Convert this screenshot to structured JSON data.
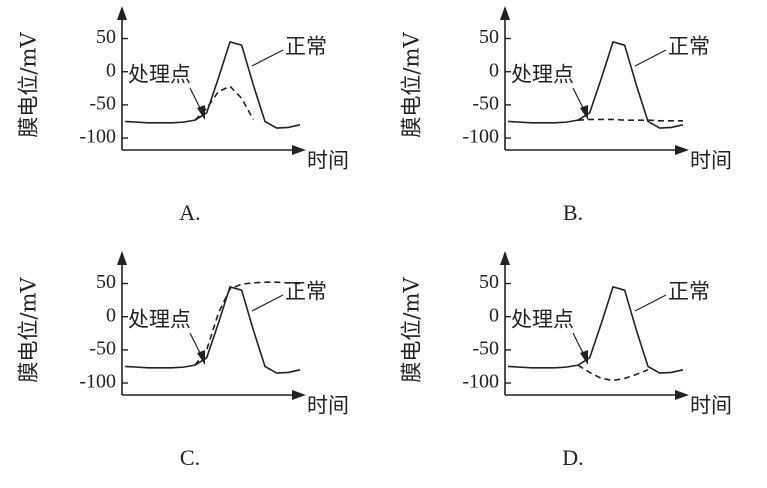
{
  "chart_data": [
    {
      "type": "line",
      "title": "A.",
      "ylabel": "膜电位/mV",
      "xlabel": "时间",
      "annotations": [
        "正常",
        "处理点"
      ],
      "categories": [
        null,
        null,
        null,
        null,
        null,
        null,
        null,
        null,
        null,
        null,
        null,
        null,
        null,
        null,
        null,
        null
      ],
      "ylim": [
        -118,
        90
      ],
      "yticks": [
        50,
        0,
        -50,
        -100
      ],
      "series": [
        {
          "color": "#222222",
          "style": "solid",
          "values": [
            -75,
            -76,
            -77,
            -77,
            -77,
            -76,
            -73,
            -62,
            -10,
            45,
            40,
            -20,
            -75,
            -85,
            -84,
            -80
          ]
        },
        {
          "color": "#222222",
          "style": "dashed",
          "values": [
            null,
            null,
            null,
            null,
            null,
            null,
            -73,
            -55,
            -30,
            -22,
            -40,
            -72,
            null,
            null,
            null,
            null
          ]
        }
      ]
    },
    {
      "type": "line",
      "title": "B.",
      "ylabel": "膜电位/mV",
      "xlabel": "时间",
      "annotations": [
        "正常",
        "处理点"
      ],
      "categories": [
        null,
        null,
        null,
        null,
        null,
        null,
        null,
        null,
        null,
        null,
        null,
        null,
        null,
        null,
        null,
        null
      ],
      "ylim": [
        -118,
        90
      ],
      "yticks": [
        50,
        0,
        -50,
        -100
      ],
      "series": [
        {
          "color": "#222222",
          "style": "solid",
          "values": [
            -75,
            -76,
            -77,
            -77,
            -77,
            -76,
            -73,
            -62,
            -10,
            45,
            40,
            -20,
            -75,
            -85,
            -84,
            -80
          ]
        },
        {
          "color": "#222222",
          "style": "dashed",
          "values": [
            null,
            null,
            null,
            null,
            null,
            null,
            -73,
            -72,
            -72,
            -72,
            -73,
            -73,
            -73,
            -74,
            -74,
            -74
          ]
        }
      ]
    },
    {
      "type": "line",
      "title": "C.",
      "ylabel": "膜电位/mV",
      "xlabel": "时间",
      "annotations": [
        "正常",
        "处理点"
      ],
      "categories": [
        null,
        null,
        null,
        null,
        null,
        null,
        null,
        null,
        null,
        null,
        null,
        null,
        null,
        null,
        null,
        null
      ],
      "ylim": [
        -118,
        90
      ],
      "yticks": [
        50,
        0,
        -50,
        -100
      ],
      "series": [
        {
          "color": "#222222",
          "style": "solid",
          "values": [
            -75,
            -76,
            -77,
            -77,
            -77,
            -76,
            -73,
            -62,
            -10,
            45,
            40,
            -20,
            -75,
            -85,
            -84,
            -80
          ]
        },
        {
          "color": "#222222",
          "style": "dashed",
          "values": [
            null,
            null,
            null,
            null,
            null,
            null,
            -73,
            -50,
            5,
            42,
            49,
            51,
            52,
            52,
            51,
            50
          ]
        }
      ]
    },
    {
      "type": "line",
      "title": "D.",
      "ylabel": "膜电位/mV",
      "xlabel": "时间",
      "annotations": [
        "正常",
        "处理点"
      ],
      "categories": [
        null,
        null,
        null,
        null,
        null,
        null,
        null,
        null,
        null,
        null,
        null,
        null,
        null,
        null,
        null,
        null
      ],
      "ylim": [
        -118,
        90
      ],
      "yticks": [
        50,
        0,
        -50,
        -100
      ],
      "series": [
        {
          "color": "#222222",
          "style": "solid",
          "values": [
            -75,
            -76,
            -77,
            -77,
            -77,
            -76,
            -73,
            -62,
            -10,
            45,
            40,
            -20,
            -75,
            -85,
            -84,
            -80
          ]
        },
        {
          "color": "#222222",
          "style": "dashed",
          "values": [
            null,
            null,
            null,
            null,
            null,
            null,
            -73,
            -84,
            -93,
            -96,
            -93,
            -87,
            -80,
            null,
            null,
            null
          ]
        }
      ]
    }
  ]
}
